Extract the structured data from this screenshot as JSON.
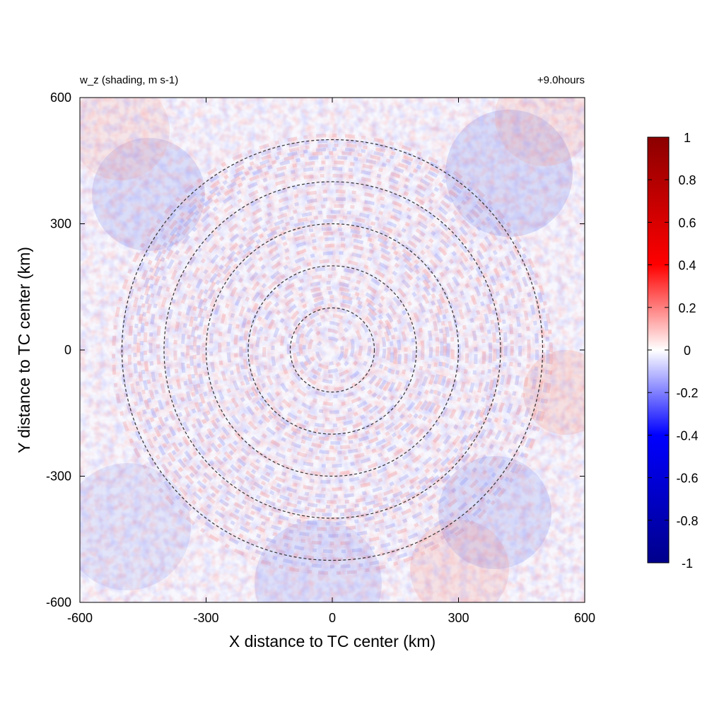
{
  "chart_data": {
    "type": "heatmap",
    "title_left": "w_z (shading, m s-1)",
    "title_right": "+9.0hours",
    "xlabel": "X distance to TC center (km)",
    "ylabel": "Y distance to TC center (km)",
    "xlim": [
      -600,
      600
    ],
    "ylim": [
      -600,
      600
    ],
    "xticks": [
      -600,
      -300,
      0,
      300,
      600
    ],
    "yticks": [
      -600,
      -300,
      0,
      300,
      600
    ],
    "ring_radii_km": [
      100,
      200,
      300,
      400,
      500
    ],
    "colorbar": {
      "range": [
        -1,
        1
      ],
      "ticks": [
        1,
        0.8,
        0.6,
        0.4,
        0.2,
        0,
        -0.2,
        -0.4,
        -0.6,
        -0.8,
        -1
      ],
      "colors": [
        "#00008b",
        "#0000ff",
        "#ffffff",
        "#ff0000",
        "#8b0000"
      ]
    }
  }
}
